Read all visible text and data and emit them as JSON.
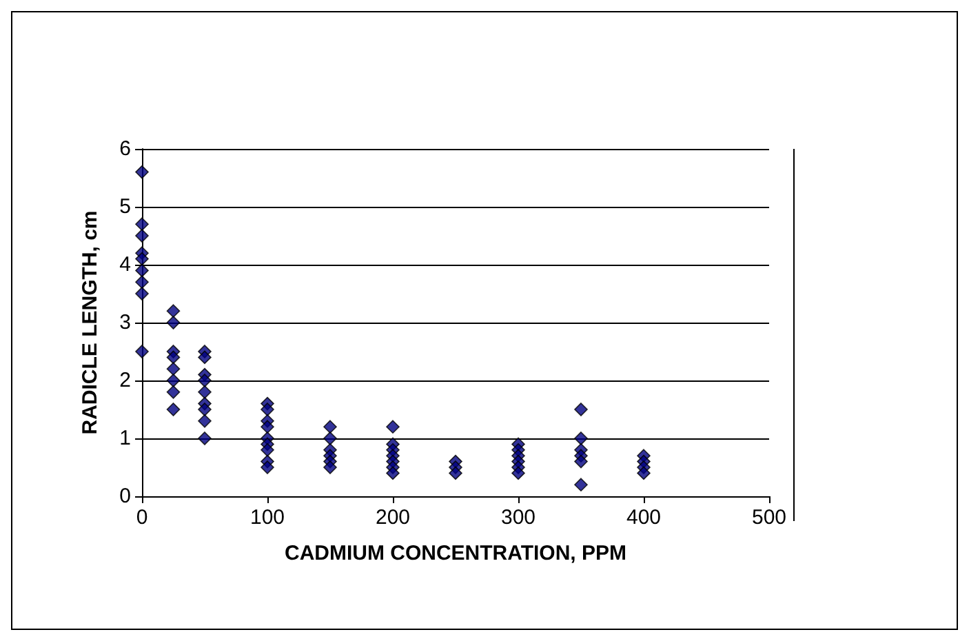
{
  "chart_data": {
    "type": "scatter",
    "xlabel": "CADMIUM CONCENTRATION, PPM",
    "ylabel": "RADICLE LENGTH, cm",
    "x": [
      0,
      0,
      0,
      0,
      0,
      0,
      0,
      0,
      0,
      25,
      25,
      25,
      25,
      25,
      25,
      25,
      25,
      50,
      50,
      50,
      50,
      50,
      50,
      50,
      50,
      50,
      100,
      100,
      100,
      100,
      100,
      100,
      100,
      100,
      100,
      150,
      150,
      150,
      150,
      150,
      150,
      200,
      200,
      200,
      200,
      200,
      200,
      200,
      250,
      250,
      250,
      300,
      300,
      300,
      300,
      300,
      300,
      350,
      350,
      350,
      350,
      350,
      350,
      400,
      400,
      400,
      400
    ],
    "values": [
      5.6,
      4.7,
      4.5,
      4.2,
      4.1,
      3.9,
      3.7,
      3.5,
      2.5,
      3.2,
      3.0,
      2.5,
      2.4,
      2.2,
      2.0,
      1.8,
      1.5,
      2.5,
      2.4,
      2.1,
      2.0,
      1.8,
      1.6,
      1.5,
      1.3,
      1.0,
      1.6,
      1.5,
      1.3,
      1.2,
      1.0,
      0.9,
      0.8,
      0.6,
      0.5,
      1.2,
      1.0,
      0.8,
      0.7,
      0.6,
      0.5,
      1.2,
      0.9,
      0.8,
      0.7,
      0.6,
      0.5,
      0.4,
      0.6,
      0.5,
      0.4,
      0.9,
      0.8,
      0.7,
      0.6,
      0.5,
      0.4,
      1.5,
      1.0,
      0.8,
      0.7,
      0.6,
      0.2,
      0.7,
      0.6,
      0.5,
      0.4
    ],
    "color": "#000080",
    "marker": "diamond",
    "xlim": [
      0,
      500
    ],
    "xticks": [
      0,
      100,
      200,
      300,
      400,
      500
    ],
    "ylim": [
      0,
      6
    ],
    "yticks": [
      0,
      1,
      2,
      3,
      4,
      5,
      6
    ],
    "grid": "y"
  }
}
